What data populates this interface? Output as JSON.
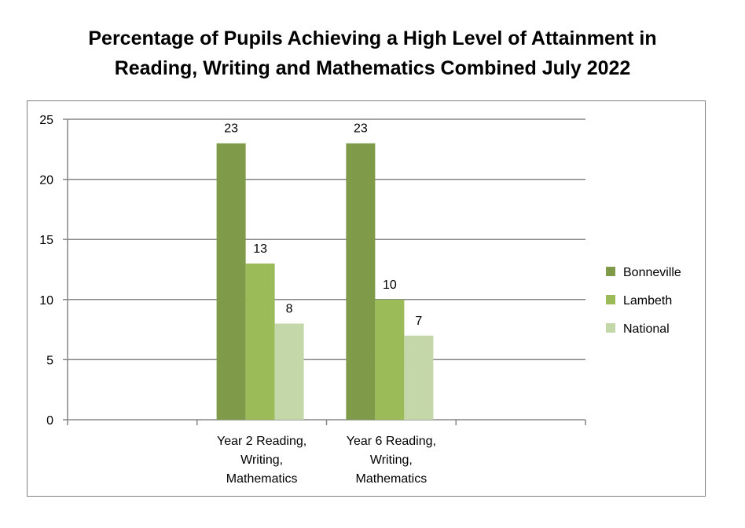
{
  "chart_data": {
    "type": "bar",
    "title_lines": [
      "Percentage of Pupils Achieving a High Level of Attainment in",
      "Reading, Writing and Mathematics Combined July 2022"
    ],
    "categories": [
      [
        "Year 2 Reading,",
        "Writing,",
        "Mathematics"
      ],
      [
        "Year 6 Reading,",
        "Writing,",
        "Mathematics"
      ]
    ],
    "series": [
      {
        "name": "Bonneville",
        "values": [
          23,
          23
        ],
        "color": "#7f9a48"
      },
      {
        "name": "Lambeth",
        "values": [
          13,
          10
        ],
        "color": "#9bbb59"
      },
      {
        "name": "National",
        "values": [
          8,
          7
        ],
        "color": "#c4d7a8"
      }
    ],
    "ylim": [
      0,
      25
    ],
    "yticks": [
      0,
      5,
      10,
      15,
      20,
      25
    ],
    "grid": true,
    "legend_position": "right",
    "xlabel": "",
    "ylabel": ""
  }
}
